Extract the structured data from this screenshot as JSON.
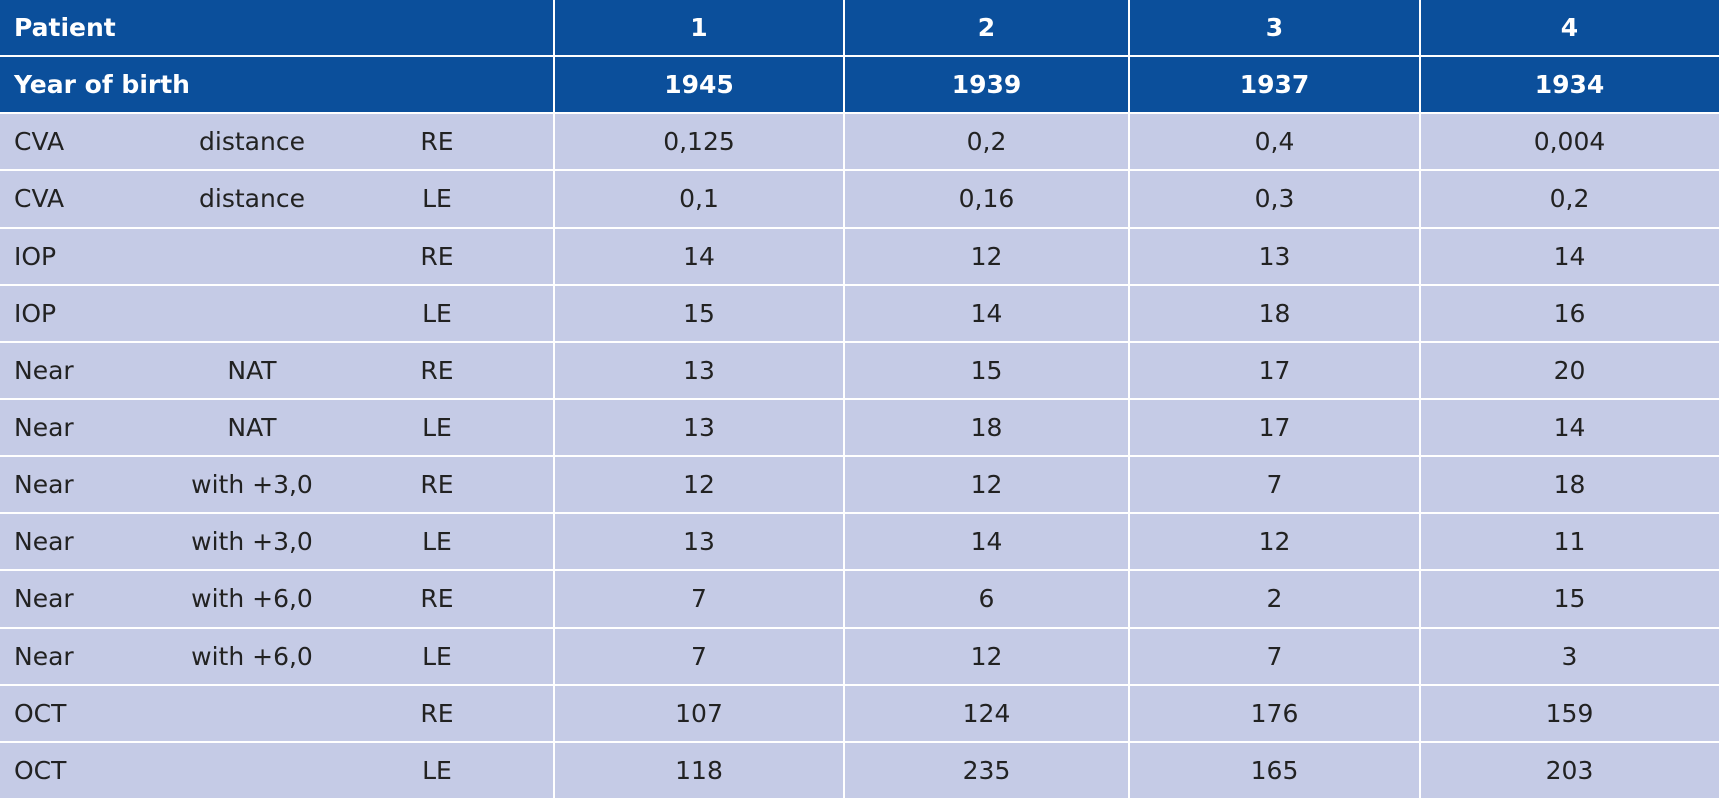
{
  "table": {
    "header": [
      {
        "label": "Patient",
        "values": [
          "1",
          "2",
          "3",
          "4"
        ]
      },
      {
        "label": "Year of birth",
        "values": [
          "1945",
          "1939",
          "1937",
          "1934"
        ]
      }
    ],
    "rows": [
      {
        "measure": "CVA",
        "detail": "distance",
        "eye": "RE",
        "values": [
          "0,125",
          "0,2",
          "0,4",
          "0,004"
        ]
      },
      {
        "measure": "CVA",
        "detail": "distance",
        "eye": "LE",
        "values": [
          "0,1",
          "0,16",
          "0,3",
          "0,2"
        ]
      },
      {
        "measure": "IOP",
        "eye": "RE",
        "values": [
          "14",
          "12",
          "13",
          "14"
        ]
      },
      {
        "measure": "IOP",
        "eye": "LE",
        "values": [
          "15",
          "14",
          "18",
          "16"
        ]
      },
      {
        "measure": "Near",
        "detail": "NAT",
        "eye": "RE",
        "values": [
          "13",
          "15",
          "17",
          "20"
        ]
      },
      {
        "measure": "Near",
        "detail": "NAT",
        "eye": "LE",
        "values": [
          "13",
          "18",
          "17",
          "14"
        ]
      },
      {
        "measure": "Near",
        "detail": "with +3,0",
        "eye": "RE",
        "values": [
          "12",
          "12",
          "7",
          "18"
        ]
      },
      {
        "measure": "Near",
        "detail": "with +3,0",
        "eye": "LE",
        "values": [
          "13",
          "14",
          "12",
          "11"
        ]
      },
      {
        "measure": "Near",
        "detail": "with +6,0",
        "eye": "RE",
        "values": [
          "7",
          "6",
          "2",
          "15"
        ]
      },
      {
        "measure": "Near",
        "detail": "with +6,0",
        "eye": "LE",
        "values": [
          "7",
          "12",
          "7",
          "3"
        ]
      },
      {
        "measure": "OCT",
        "eye": "RE",
        "values": [
          "107",
          "124",
          "176",
          "159"
        ]
      },
      {
        "measure": "OCT",
        "eye": "LE",
        "values": [
          "118",
          "235",
          "165",
          "203"
        ]
      }
    ]
  }
}
